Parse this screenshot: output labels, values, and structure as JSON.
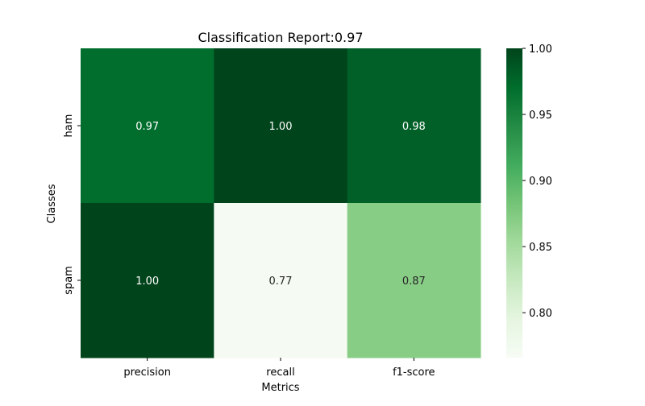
{
  "chart_data": {
    "type": "heatmap",
    "title": "Classification Report:0.97",
    "xlabel": "Metrics",
    "ylabel": "Classes",
    "x_categories": [
      "precision",
      "recall",
      "f1-score"
    ],
    "y_categories": [
      "ham",
      "spam"
    ],
    "values": [
      [
        0.97,
        1.0,
        0.98
      ],
      [
        1.0,
        0.77,
        0.87
      ]
    ],
    "cell_labels": [
      [
        "0.97",
        "1.00",
        "0.98"
      ],
      [
        "1.00",
        "0.77",
        "0.87"
      ]
    ],
    "colormap": "Greens",
    "vmin": 0.766,
    "vmax": 1.0,
    "colorbar_ticks": [
      0.8,
      0.85,
      0.9,
      0.95,
      1.0
    ],
    "colorbar_tick_labels": [
      "0.80",
      "0.85",
      "0.90",
      "0.95",
      "1.00"
    ],
    "grid": false,
    "legend": "colorbar-right"
  }
}
